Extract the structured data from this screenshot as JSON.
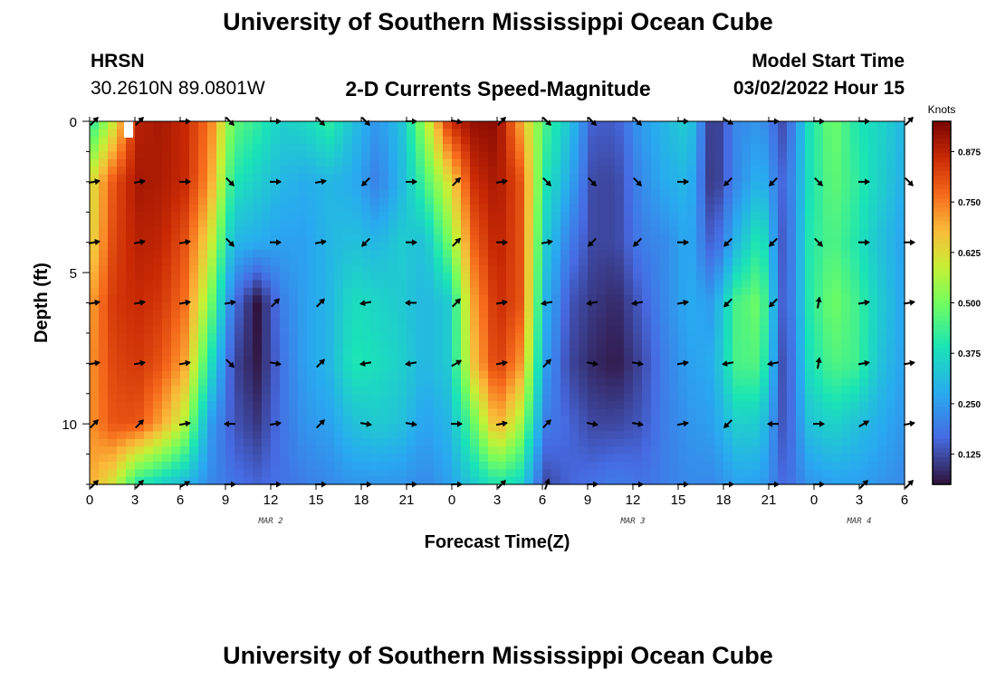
{
  "header": {
    "title": "University of Southern Mississippi Ocean Cube",
    "station_name": "HRSN",
    "station_coords": "30.2610N  89.0801W",
    "chart_title": "2-D Currents Speed-Magnitude",
    "model_start_label": "Model Start Time",
    "model_start_value": "03/02/2022 Hour 15"
  },
  "footer": {
    "title": "University of Southern Mississippi Ocean Cube"
  },
  "chart_data": {
    "type": "heatmap",
    "title": "2-D Currents Speed-Magnitude",
    "xlabel": "Forecast Time(Z)",
    "ylabel": "Depth (ft)",
    "x_tick_labels": [
      "0",
      "3",
      "6",
      "9",
      "12",
      "15",
      "18",
      "21",
      "0",
      "3",
      "6",
      "9",
      "12",
      "15",
      "18",
      "21",
      "0",
      "3",
      "6"
    ],
    "x_hours": [
      0,
      54
    ],
    "y_ticks": [
      0,
      5,
      10
    ],
    "ylim": [
      0,
      12
    ],
    "y_inverted": true,
    "date_labels": [
      {
        "text": "MAR 2",
        "hour": 12
      },
      {
        "text": "MAR 3",
        "hour": 36
      },
      {
        "text": "MAR 4",
        "hour": 51
      }
    ],
    "colorbar": {
      "label": "Knots",
      "ticks": [
        "0.875",
        "0.750",
        "0.625",
        "0.500",
        "0.375",
        "0.250",
        "0.125"
      ],
      "tick_values": [
        0.875,
        0.75,
        0.625,
        0.5,
        0.375,
        0.25,
        0.125
      ],
      "range": [
        0.05,
        0.95
      ]
    },
    "depth_levels_ft": [
      0,
      2,
      4,
      6,
      8,
      10,
      12
    ],
    "speed_knots": [
      [
        0.4,
        0.6,
        0.88,
        0.9,
        0.86,
        0.76,
        0.48,
        0.42,
        0.35,
        0.37,
        0.42,
        0.32,
        0.24,
        0.32,
        0.55,
        0.85,
        0.92,
        0.93,
        0.7,
        0.45,
        0.33,
        0.15,
        0.15,
        0.25,
        0.3,
        0.35,
        0.08,
        0.22,
        0.24,
        0.12,
        0.38,
        0.5,
        0.4,
        0.36,
        0.3
      ],
      [
        0.6,
        0.8,
        0.9,
        0.89,
        0.86,
        0.72,
        0.4,
        0.35,
        0.3,
        0.28,
        0.3,
        0.28,
        0.2,
        0.3,
        0.45,
        0.62,
        0.85,
        0.9,
        0.8,
        0.4,
        0.28,
        0.12,
        0.12,
        0.22,
        0.28,
        0.3,
        0.08,
        0.22,
        0.3,
        0.15,
        0.38,
        0.48,
        0.42,
        0.35,
        0.28
      ],
      [
        0.62,
        0.82,
        0.88,
        0.87,
        0.8,
        0.62,
        0.3,
        0.28,
        0.26,
        0.26,
        0.3,
        0.32,
        0.3,
        0.34,
        0.32,
        0.5,
        0.78,
        0.88,
        0.8,
        0.35,
        0.2,
        0.12,
        0.12,
        0.2,
        0.22,
        0.28,
        0.14,
        0.3,
        0.42,
        0.12,
        0.4,
        0.46,
        0.4,
        0.32,
        0.26
      ],
      [
        0.7,
        0.84,
        0.86,
        0.84,
        0.76,
        0.52,
        0.18,
        0.05,
        0.2,
        0.26,
        0.3,
        0.38,
        0.36,
        0.34,
        0.3,
        0.34,
        0.7,
        0.86,
        0.8,
        0.3,
        0.14,
        0.1,
        0.08,
        0.15,
        0.22,
        0.28,
        0.25,
        0.45,
        0.5,
        0.12,
        0.4,
        0.5,
        0.44,
        0.34,
        0.26
      ],
      [
        0.72,
        0.82,
        0.84,
        0.8,
        0.7,
        0.4,
        0.12,
        0.06,
        0.18,
        0.26,
        0.3,
        0.4,
        0.38,
        0.35,
        0.3,
        0.34,
        0.66,
        0.84,
        0.72,
        0.26,
        0.12,
        0.08,
        0.06,
        0.12,
        0.2,
        0.26,
        0.28,
        0.45,
        0.46,
        0.1,
        0.38,
        0.46,
        0.44,
        0.32,
        0.26
      ],
      [
        0.72,
        0.8,
        0.8,
        0.7,
        0.56,
        0.26,
        0.14,
        0.1,
        0.18,
        0.24,
        0.26,
        0.32,
        0.34,
        0.32,
        0.26,
        0.3,
        0.48,
        0.7,
        0.55,
        0.2,
        0.16,
        0.12,
        0.12,
        0.14,
        0.2,
        0.24,
        0.26,
        0.35,
        0.34,
        0.12,
        0.32,
        0.36,
        0.32,
        0.28,
        0.24
      ],
      [
        0.7,
        0.6,
        0.4,
        0.35,
        0.3,
        0.22,
        0.18,
        0.16,
        0.18,
        0.2,
        0.22,
        0.24,
        0.24,
        0.24,
        0.22,
        0.26,
        0.34,
        0.4,
        0.36,
        0.12,
        0.16,
        0.18,
        0.2,
        0.18,
        0.2,
        0.22,
        0.22,
        0.26,
        0.26,
        0.16,
        0.24,
        0.26,
        0.26,
        0.24,
        0.22
      ]
    ],
    "arrow_rows_ft": [
      0,
      2,
      4,
      6,
      8,
      10,
      12
    ],
    "arrow_hours": [
      0,
      3,
      6,
      9,
      12,
      15,
      18,
      21,
      24,
      27,
      30,
      33,
      36,
      39,
      42,
      45,
      48,
      51,
      54
    ],
    "arrow_direction_deg": [
      [
        45,
        45,
        90,
        135,
        90,
        135,
        135,
        90,
        100,
        45,
        135,
        135,
        135,
        90,
        120,
        90,
        90,
        90,
        45
      ],
      [
        80,
        80,
        90,
        135,
        90,
        80,
        225,
        90,
        45,
        80,
        135,
        135,
        135,
        90,
        225,
        225,
        135,
        90,
        135
      ],
      [
        80,
        80,
        80,
        135,
        90,
        80,
        225,
        90,
        45,
        90,
        80,
        225,
        225,
        90,
        225,
        225,
        135,
        90,
        90
      ],
      [
        80,
        80,
        80,
        80,
        45,
        45,
        260,
        270,
        45,
        80,
        260,
        260,
        260,
        80,
        225,
        225,
        10,
        80,
        80
      ],
      [
        80,
        80,
        80,
        135,
        100,
        45,
        260,
        260,
        60,
        80,
        45,
        100,
        100,
        80,
        260,
        260,
        10,
        80,
        80
      ],
      [
        45,
        45,
        80,
        270,
        80,
        45,
        100,
        100,
        90,
        80,
        45,
        100,
        100,
        80,
        225,
        270,
        90,
        60,
        80
      ],
      [
        45,
        45,
        60,
        90,
        90,
        90,
        90,
        90,
        90,
        45,
        20,
        90,
        90,
        90,
        90,
        90,
        90,
        45,
        45
      ]
    ]
  }
}
